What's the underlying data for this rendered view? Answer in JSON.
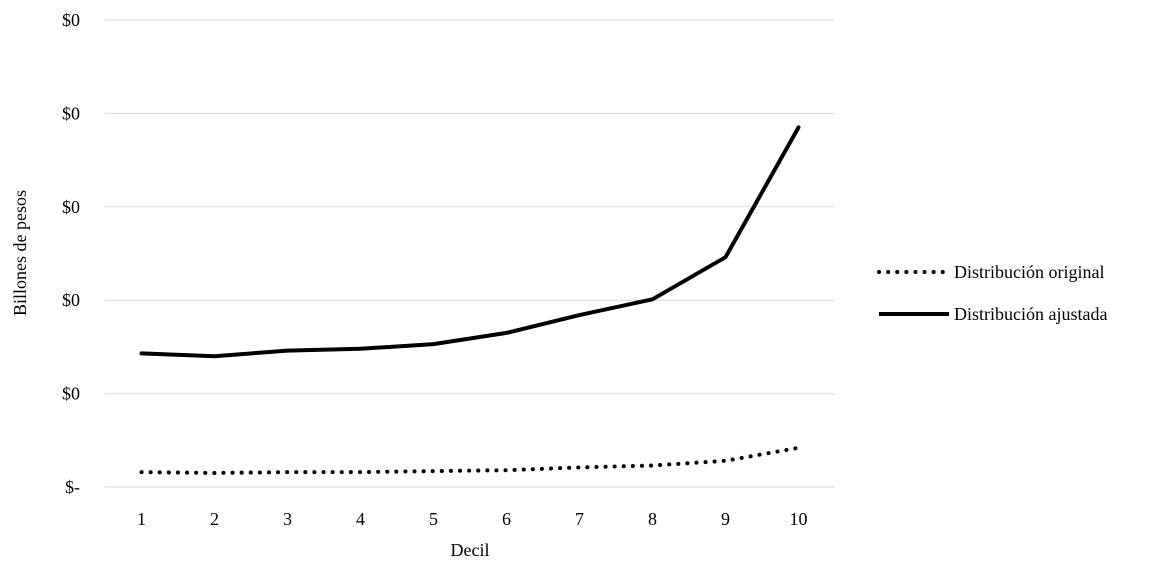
{
  "chart_data": {
    "type": "line",
    "xlabel": "Decil",
    "ylabel": "Billones de pesos",
    "categories": [
      "1",
      "2",
      "3",
      "4",
      "5",
      "6",
      "7",
      "8",
      "9",
      "10"
    ],
    "y_tick_labels": [
      "$-",
      "$0",
      "$0",
      "$0",
      "$0",
      "$0"
    ],
    "ylim": [
      0,
      5
    ],
    "grid": true,
    "legend_position": "right",
    "series": [
      {
        "name": "Distribución original",
        "style": "dotted",
        "color": "#000000",
        "values": [
          0.16,
          0.15,
          0.16,
          0.16,
          0.17,
          0.18,
          0.21,
          0.23,
          0.28,
          0.42
        ]
      },
      {
        "name": "Distribución ajustada",
        "style": "solid",
        "color": "#000000",
        "values": [
          1.43,
          1.4,
          1.46,
          1.48,
          1.53,
          1.65,
          1.84,
          2.01,
          2.46,
          3.85
        ]
      }
    ]
  }
}
